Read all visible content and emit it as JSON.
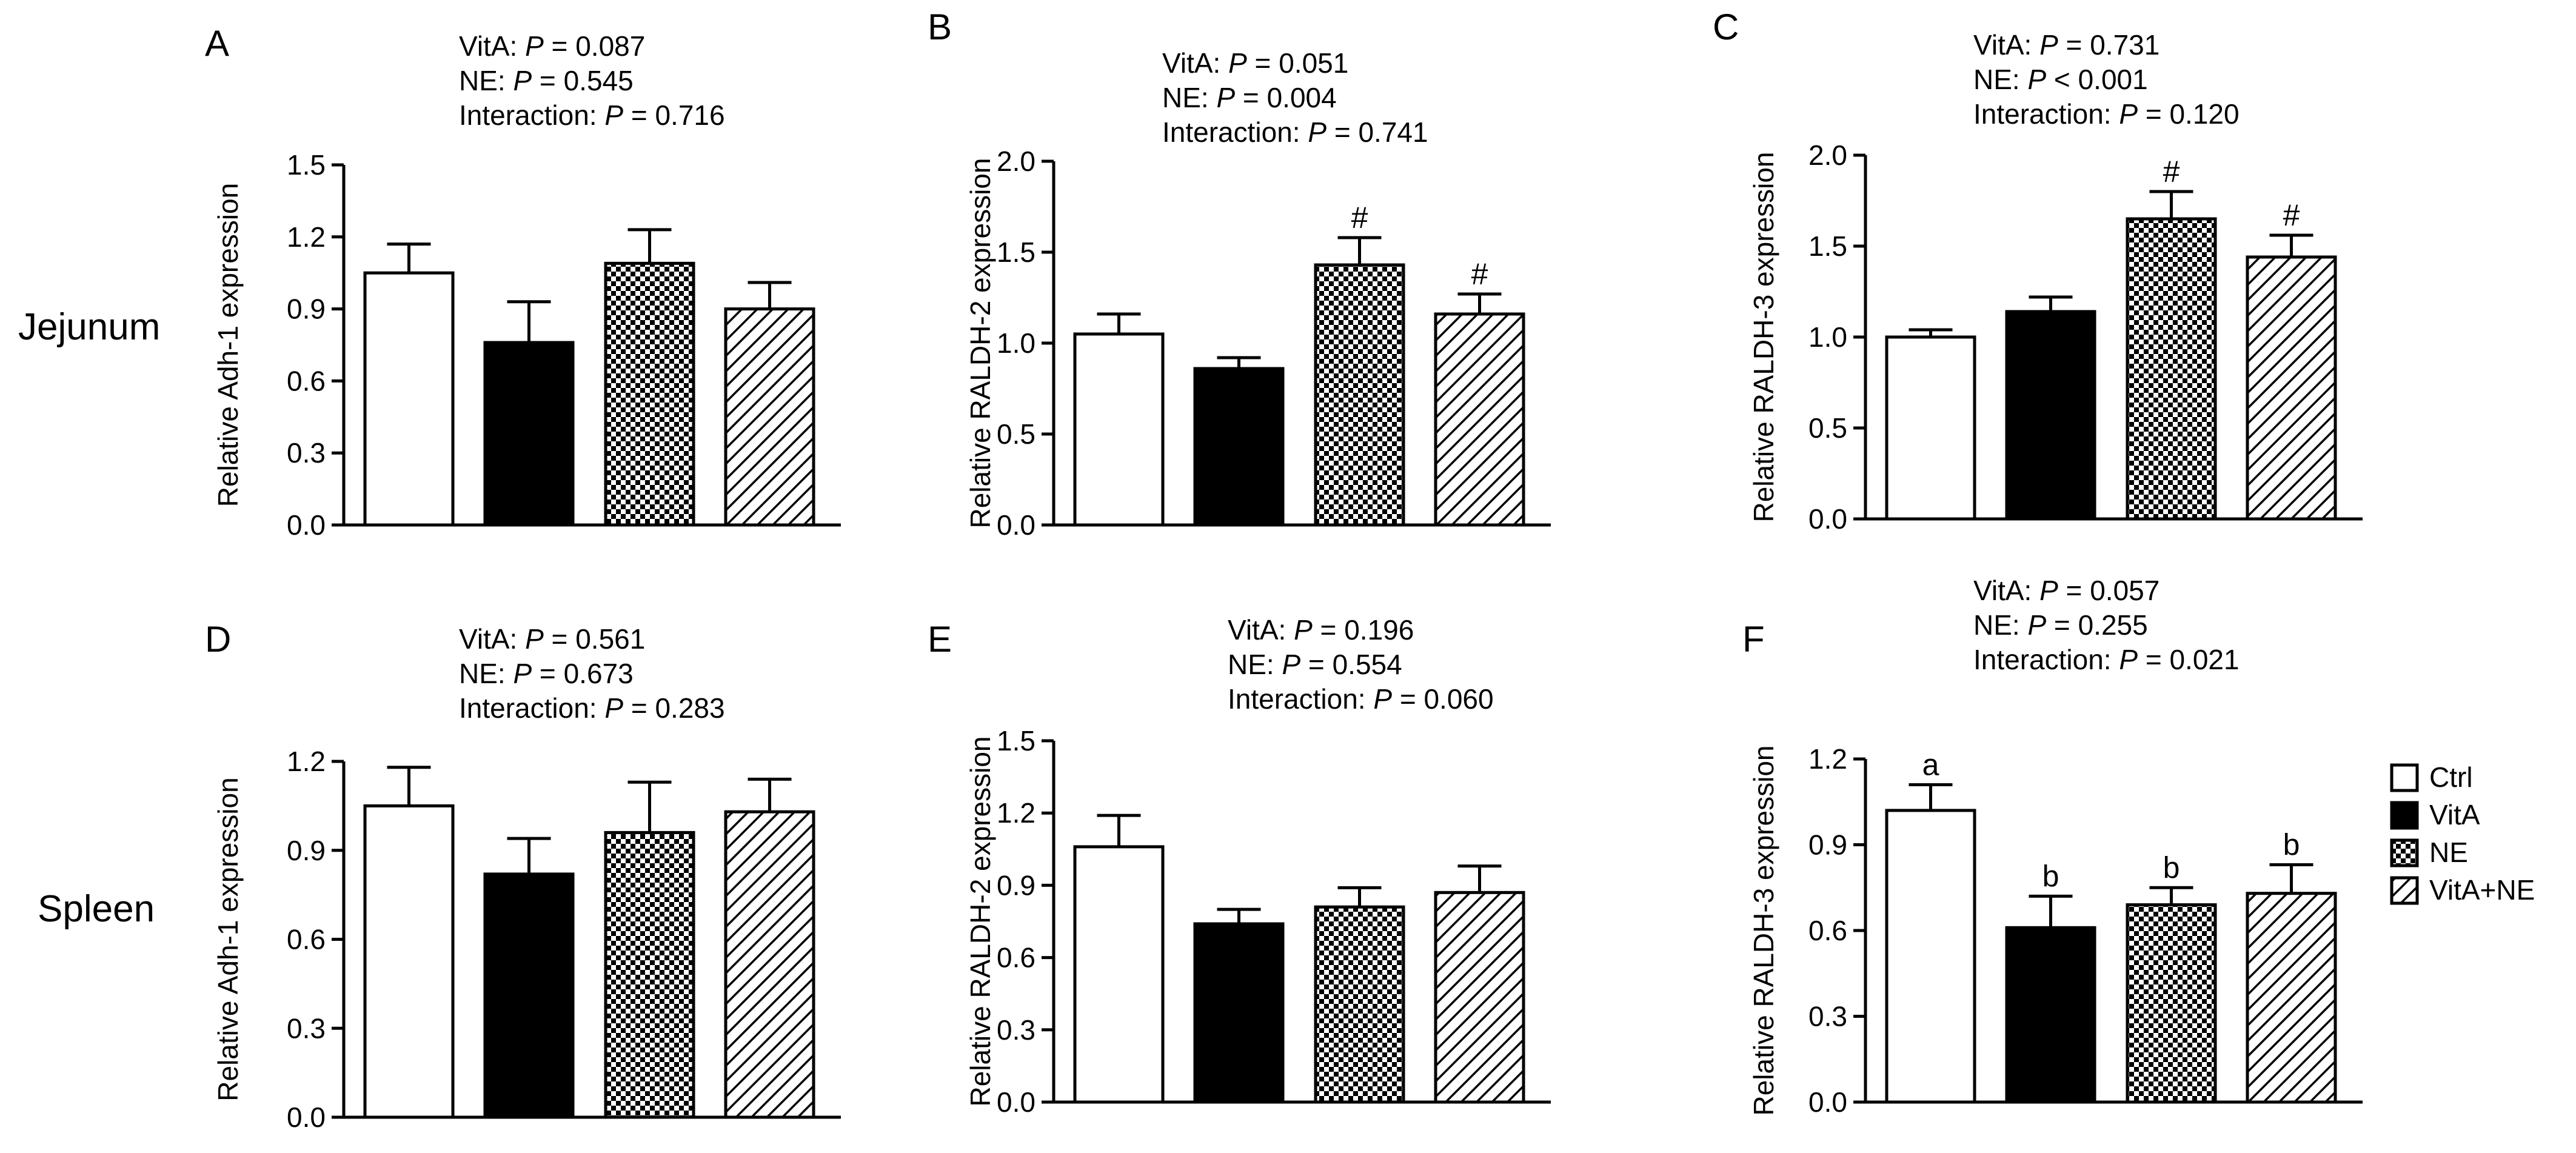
{
  "row_labels": [
    "Jejunum",
    "Spleen"
  ],
  "legend": [
    {
      "label": "Ctrl",
      "fill": "white"
    },
    {
      "label": "VitA",
      "fill": "black"
    },
    {
      "label": "NE",
      "fill": "checker"
    },
    {
      "label": "VitA+NE",
      "fill": "hatch"
    }
  ],
  "colors": {
    "bar_outline": "#000000",
    "black_fill": "#000000",
    "white_fill": "#ffffff"
  },
  "chart_data": [
    {
      "panel": "A",
      "type": "bar",
      "categories": [
        "Ctrl",
        "VitA",
        "NE",
        "VitA+NE"
      ],
      "values": [
        1.05,
        0.76,
        1.09,
        0.9
      ],
      "errors": [
        0.12,
        0.17,
        0.14,
        0.11
      ],
      "ylabel": "Relative Adh-1 expression",
      "ylim": [
        0,
        1.5
      ],
      "yticks": [
        "0.0",
        "0.3",
        "0.6",
        "0.9",
        "1.2",
        "1.5"
      ],
      "stats": [
        {
          "label": "VitA: ",
          "p": "P",
          "rest": " = 0.087"
        },
        {
          "label": "NE: ",
          "p": "P",
          "rest": " = 0.545"
        },
        {
          "label": "Interaction: ",
          "p": "P",
          "rest": " = 0.716"
        }
      ],
      "annotations": [
        "",
        "",
        "",
        ""
      ]
    },
    {
      "panel": "B",
      "type": "bar",
      "categories": [
        "Ctrl",
        "VitA",
        "NE",
        "VitA+NE"
      ],
      "values": [
        1.05,
        0.86,
        1.43,
        1.16
      ],
      "errors": [
        0.11,
        0.06,
        0.15,
        0.11
      ],
      "ylabel": "Relative RALDH-2 expression",
      "ylim": [
        0,
        2.0
      ],
      "yticks": [
        "0.0",
        "0.5",
        "1.0",
        "1.5",
        "2.0"
      ],
      "stats": [
        {
          "label": "VitA: ",
          "p": "P",
          "rest": " =  0.051"
        },
        {
          "label": "NE: ",
          "p": "P",
          "rest": " = 0.004"
        },
        {
          "label": "Interaction: ",
          "p": "P",
          "rest": " = 0.741"
        }
      ],
      "annotations": [
        "",
        "",
        "#",
        "#"
      ]
    },
    {
      "panel": "C",
      "type": "bar",
      "categories": [
        "Ctrl",
        "VitA",
        "NE",
        "VitA+NE"
      ],
      "values": [
        1.0,
        1.14,
        1.65,
        1.44
      ],
      "errors": [
        0.04,
        0.08,
        0.15,
        0.12
      ],
      "ylabel": "Relative RALDH-3 expression",
      "ylim": [
        0,
        2.0
      ],
      "yticks": [
        "0.0",
        "0.5",
        "1.0",
        "1.5",
        "2.0"
      ],
      "stats": [
        {
          "label": "VitA: ",
          "p": "P",
          "rest": " = 0.731"
        },
        {
          "label": "NE: ",
          "p": "P",
          "rest": " < 0.001"
        },
        {
          "label": "Interaction: ",
          "p": "P",
          "rest": " = 0.120"
        }
      ],
      "annotations": [
        "",
        "",
        "#",
        "#"
      ]
    },
    {
      "panel": "D",
      "type": "bar",
      "categories": [
        "Ctrl",
        "VitA",
        "NE",
        "VitA+NE"
      ],
      "values": [
        1.05,
        0.82,
        0.96,
        1.03
      ],
      "errors": [
        0.13,
        0.12,
        0.17,
        0.11
      ],
      "ylabel": "Relative Adh-1 expression",
      "ylim": [
        0,
        1.2
      ],
      "yticks": [
        "0.0",
        "0.3",
        "0.6",
        "0.9",
        "1.2"
      ],
      "stats": [
        {
          "label": "VitA: ",
          "p": "P",
          "rest": " = 0.561"
        },
        {
          "label": "NE: ",
          "p": "P",
          "rest": " = 0.673"
        },
        {
          "label": "Interaction: ",
          "p": "P",
          "rest": " = 0.283"
        }
      ],
      "annotations": [
        "",
        "",
        "",
        ""
      ]
    },
    {
      "panel": "E",
      "type": "bar",
      "categories": [
        "Ctrl",
        "VitA",
        "NE",
        "VitA+NE"
      ],
      "values": [
        1.06,
        0.74,
        0.81,
        0.87
      ],
      "errors": [
        0.13,
        0.06,
        0.08,
        0.11
      ],
      "ylabel": "Relative RALDH-2 expression",
      "ylim": [
        0,
        1.5
      ],
      "yticks": [
        "0.0",
        "0.3",
        "0.6",
        "0.9",
        "1.2",
        "1.5"
      ],
      "stats": [
        {
          "label": "VitA: ",
          "p": "P",
          "rest": " = 0.196"
        },
        {
          "label": "NE: ",
          "p": "P",
          "rest": " = 0.554"
        },
        {
          "label": "Interaction: ",
          "p": "P",
          "rest": " = 0.060"
        }
      ],
      "annotations": [
        "",
        "",
        "",
        ""
      ]
    },
    {
      "panel": "F",
      "type": "bar",
      "categories": [
        "Ctrl",
        "VitA",
        "NE",
        "VitA+NE"
      ],
      "values": [
        1.02,
        0.61,
        0.69,
        0.73
      ],
      "errors": [
        0.09,
        0.11,
        0.06,
        0.1
      ],
      "ylabel": "Relative RALDH-3 expression",
      "ylim": [
        0,
        1.2
      ],
      "yticks": [
        "0.0",
        "0.3",
        "0.6",
        "0.9",
        "1.2"
      ],
      "stats": [
        {
          "label": "VitA: ",
          "p": "P",
          "rest": " = 0.057"
        },
        {
          "label": "NE: ",
          "p": "P",
          "rest": " = 0.255"
        },
        {
          "label": "Interaction: ",
          "p": "P",
          "rest": " = 0.021"
        }
      ],
      "annotations": [
        "a",
        "b",
        "b",
        "b"
      ]
    }
  ]
}
